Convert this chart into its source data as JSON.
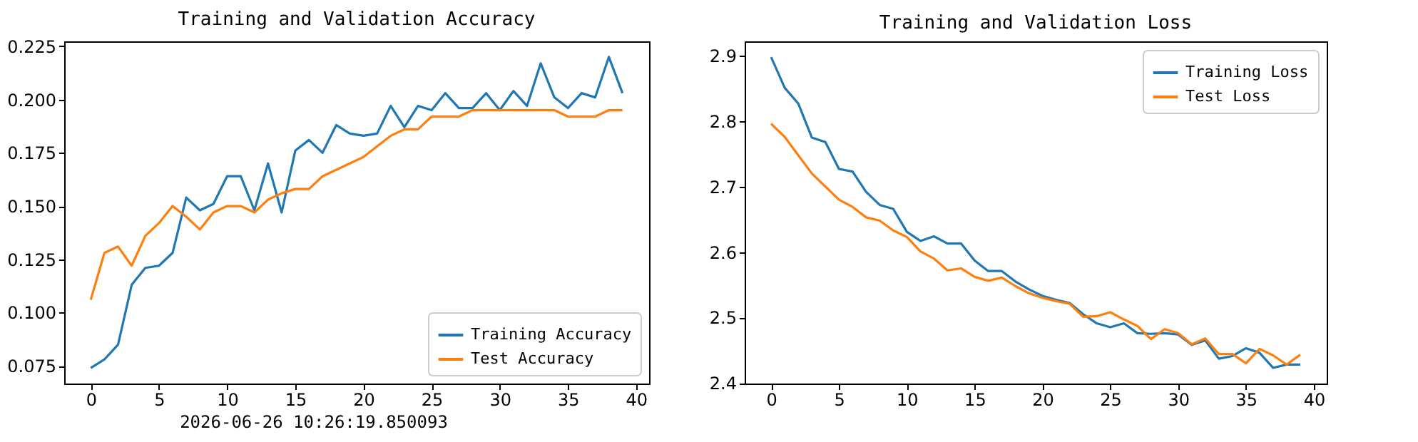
{
  "chart_data": [
    {
      "type": "line",
      "title": "Training and Validation Accuracy",
      "x": [
        0,
        1,
        2,
        3,
        4,
        5,
        6,
        7,
        8,
        9,
        10,
        11,
        12,
        13,
        14,
        15,
        16,
        17,
        18,
        19,
        20,
        21,
        22,
        23,
        24,
        25,
        26,
        27,
        28,
        29,
        30,
        31,
        32,
        33,
        34,
        35,
        36,
        37,
        38,
        39
      ],
      "series": [
        {
          "name": "Training Accuracy",
          "color": "#1f77b4",
          "values": [
            0.074,
            0.078,
            0.085,
            0.113,
            0.121,
            0.122,
            0.128,
            0.154,
            0.148,
            0.151,
            0.164,
            0.164,
            0.148,
            0.17,
            0.147,
            0.176,
            0.181,
            0.175,
            0.188,
            0.184,
            0.183,
            0.184,
            0.197,
            0.187,
            0.197,
            0.195,
            0.203,
            0.196,
            0.196,
            0.203,
            0.195,
            0.204,
            0.197,
            0.217,
            0.201,
            0.196,
            0.203,
            0.201,
            0.22,
            0.203
          ]
        },
        {
          "name": "Test Accuracy",
          "color": "#ff7f0e",
          "values": [
            0.106,
            0.128,
            0.131,
            0.122,
            0.136,
            0.142,
            0.15,
            0.145,
            0.139,
            0.147,
            0.15,
            0.15,
            0.147,
            0.153,
            0.156,
            0.158,
            0.158,
            0.164,
            0.167,
            0.17,
            0.173,
            0.178,
            0.183,
            0.186,
            0.186,
            0.192,
            0.192,
            0.192,
            0.195,
            0.195,
            0.195,
            0.195,
            0.195,
            0.195,
            0.195,
            0.192,
            0.192,
            0.192,
            0.195,
            0.195
          ]
        }
      ],
      "xlim": [
        -1.95,
        40.95
      ],
      "xticks": [
        0,
        5,
        10,
        15,
        20,
        25,
        30,
        35,
        40
      ],
      "ylim": [
        0.0667,
        0.2273
      ],
      "yticks": [
        {
          "value": 0.075,
          "label": "0.075"
        },
        {
          "value": 0.1,
          "label": "0.100"
        },
        {
          "value": 0.125,
          "label": "0.125"
        },
        {
          "value": 0.15,
          "label": "0.150"
        },
        {
          "value": 0.175,
          "label": "0.175"
        },
        {
          "value": 0.2,
          "label": "0.200"
        },
        {
          "value": 0.225,
          "label": "0.225"
        }
      ],
      "legend": "bottom right",
      "annotations": [
        "2026-06-26 10:26:19.850093"
      ]
    },
    {
      "type": "line",
      "title": "Training and Validation Loss",
      "x": [
        0,
        1,
        2,
        3,
        4,
        5,
        6,
        7,
        8,
        9,
        10,
        11,
        12,
        13,
        14,
        15,
        16,
        17,
        18,
        19,
        20,
        21,
        22,
        23,
        24,
        25,
        26,
        27,
        28,
        29,
        30,
        31,
        32,
        33,
        34,
        35,
        36,
        37,
        38,
        39
      ],
      "series": [
        {
          "name": "Training Loss",
          "color": "#1f77b4",
          "values": [
            2.898,
            2.851,
            2.827,
            2.775,
            2.768,
            2.727,
            2.723,
            2.692,
            2.672,
            2.666,
            2.631,
            2.617,
            2.624,
            2.613,
            2.613,
            2.587,
            2.571,
            2.571,
            2.555,
            2.543,
            2.533,
            2.527,
            2.522,
            2.505,
            2.491,
            2.485,
            2.491,
            2.476,
            2.475,
            2.476,
            2.474,
            2.458,
            2.465,
            2.437,
            2.441,
            2.453,
            2.446,
            2.423,
            2.428,
            2.428
          ]
        },
        {
          "name": "Test Loss",
          "color": "#ff7f0e",
          "values": [
            2.796,
            2.776,
            2.748,
            2.72,
            2.7,
            2.68,
            2.669,
            2.653,
            2.648,
            2.633,
            2.623,
            2.601,
            2.59,
            2.572,
            2.575,
            2.562,
            2.556,
            2.561,
            2.548,
            2.537,
            2.53,
            2.525,
            2.521,
            2.501,
            2.502,
            2.508,
            2.497,
            2.487,
            2.467,
            2.482,
            2.476,
            2.459,
            2.468,
            2.444,
            2.444,
            2.43,
            2.452,
            2.442,
            2.428,
            2.443
          ]
        }
      ],
      "xlim": [
        -1.95,
        40.95
      ],
      "xticks": [
        0,
        5,
        10,
        15,
        20,
        25,
        30,
        35,
        40
      ],
      "ylim": [
        2.399,
        2.922
      ],
      "yticks": [
        2.4,
        2.5,
        2.6,
        2.7,
        2.8,
        2.9
      ],
      "legend": "top right"
    }
  ]
}
